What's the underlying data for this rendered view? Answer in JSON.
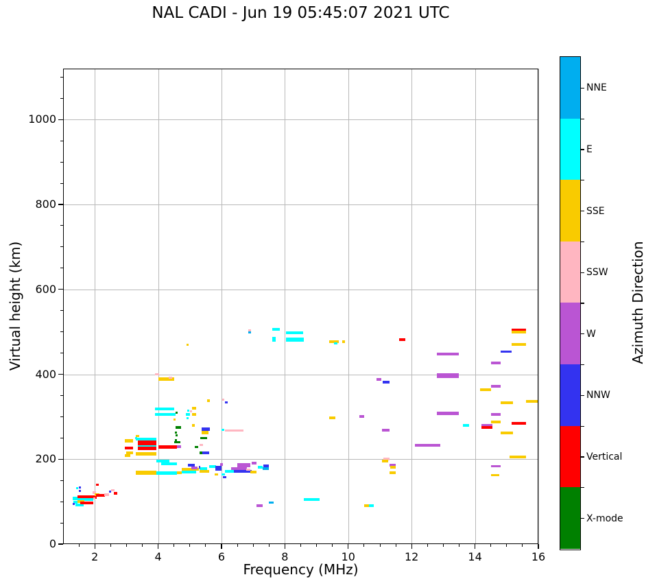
{
  "title": "NAL CADI - Jun 19 05:45:07 2021 UTC",
  "x_axis": {
    "label": "Frequency (MHz)",
    "min": 1,
    "max": 16,
    "major_ticks": [
      2,
      4,
      6,
      8,
      10,
      12,
      14,
      16
    ],
    "minor_step": 0.5
  },
  "y_axis": {
    "label": "Virtual height (km)",
    "min": 0,
    "max": 1120,
    "major_ticks": [
      0,
      200,
      400,
      600,
      800,
      1000
    ],
    "minor_step": 50
  },
  "colorbar": {
    "label": "Azimuth Direction",
    "segments_top_to_bottom": [
      {
        "label": "NNE",
        "color": "#00AEEF"
      },
      {
        "label": "E",
        "color": "#00FFFF"
      },
      {
        "label": "SSE",
        "color": "#F9CB00"
      },
      {
        "label": "SSW",
        "color": "#FFB6C1"
      },
      {
        "label": "W",
        "color": "#BA55D3"
      },
      {
        "label": "NNW",
        "color": "#3333F0"
      },
      {
        "label": "Vertical",
        "color": "#FF0000"
      },
      {
        "label": "X-mode",
        "color": "#008000"
      }
    ]
  },
  "palette": {
    "NNE": "#00AEEF",
    "E": "#00FFFF",
    "SSE": "#F9CB00",
    "SSW": "#FFB6C1",
    "W": "#BA55D3",
    "NNW": "#3333F0",
    "Vertical": "#FF0000",
    "X-mode": "#008000"
  },
  "chart_data": {
    "type": "scatter",
    "title": "NAL CADI - Jun 19 05:45:07 2021 UTC",
    "xlabel": "Frequency (MHz)",
    "ylabel": "Virtual height (km)",
    "xlim": [
      1,
      16
    ],
    "ylim": [
      0,
      1120
    ],
    "grid": true,
    "legend_position": "right-colorbar",
    "series_key": "azimuth_direction",
    "directions": [
      "NNE",
      "E",
      "SSE",
      "SSW",
      "W",
      "NNW",
      "Vertical",
      "X-mode"
    ],
    "point_format": [
      "freq_start_MHz",
      "freq_end_MHz",
      "virtual_height_km",
      "direction",
      "thickness_px"
    ],
    "points": [
      [
        1.3,
        1.45,
        107,
        "E",
        5
      ],
      [
        1.33,
        1.45,
        99,
        "E",
        4
      ],
      [
        1.3,
        1.36,
        94,
        "NNW",
        3
      ],
      [
        1.38,
        1.65,
        92,
        "E",
        4
      ],
      [
        1.45,
        2.06,
        111,
        "Vertical",
        5
      ],
      [
        1.45,
        1.95,
        105,
        "E",
        4
      ],
      [
        1.45,
        1.68,
        101,
        "SSE",
        4
      ],
      [
        1.55,
        1.95,
        97,
        "Vertical",
        4
      ],
      [
        1.42,
        1.48,
        131,
        "E",
        3
      ],
      [
        1.5,
        1.56,
        125,
        "NNW",
        3
      ],
      [
        1.5,
        1.56,
        134,
        "NNW",
        3
      ],
      [
        1.94,
        2.04,
        121,
        "SSW",
        4
      ],
      [
        2.0,
        2.15,
        117,
        "SSE",
        4
      ],
      [
        2.04,
        2.32,
        114,
        "Vertical",
        4
      ],
      [
        2.3,
        2.45,
        117,
        "SSW",
        4
      ],
      [
        2.45,
        2.52,
        123,
        "NNW",
        3
      ],
      [
        2.52,
        2.62,
        127,
        "SSW",
        3
      ],
      [
        2.6,
        2.72,
        119,
        "Vertical",
        4
      ],
      [
        2.04,
        2.12,
        139,
        "Vertical",
        3
      ],
      [
        1.95,
        2.02,
        108,
        "SSW",
        3
      ],
      [
        2.95,
        3.2,
        243,
        "SSE",
        5
      ],
      [
        2.95,
        3.2,
        227,
        "Vertical",
        4
      ],
      [
        3.0,
        3.2,
        215,
        "SSE",
        4
      ],
      [
        2.95,
        3.12,
        208,
        "SSE",
        4
      ],
      [
        3.27,
        3.34,
        250,
        "E",
        3
      ],
      [
        3.3,
        3.4,
        255,
        "SSE",
        3
      ],
      [
        3.3,
        3.95,
        247,
        "E",
        4
      ],
      [
        3.35,
        3.95,
        239,
        "Vertical",
        7
      ],
      [
        3.35,
        3.95,
        231,
        "E",
        3
      ],
      [
        3.35,
        3.95,
        225,
        "Vertical",
        5
      ],
      [
        3.3,
        3.95,
        213,
        "SSE",
        5
      ],
      [
        3.95,
        4.35,
        196,
        "E",
        4
      ],
      [
        4.1,
        4.6,
        189,
        "E",
        4
      ],
      [
        4.0,
        4.6,
        229,
        "Vertical",
        5
      ],
      [
        4.6,
        4.72,
        229,
        "W",
        4
      ],
      [
        3.3,
        3.95,
        168,
        "SSE",
        6
      ],
      [
        3.95,
        4.6,
        168,
        "E",
        5
      ],
      [
        4.6,
        4.75,
        168,
        "SSE",
        4
      ],
      [
        4.75,
        5.2,
        169,
        "E",
        4
      ],
      [
        4.5,
        4.56,
        240,
        "NNW",
        3
      ],
      [
        4.55,
        4.72,
        274,
        "X-mode",
        4
      ],
      [
        4.52,
        4.6,
        262,
        "X-mode",
        3
      ],
      [
        4.55,
        4.62,
        256,
        "X-mode",
        3
      ],
      [
        4.52,
        4.6,
        245,
        "X-mode",
        3
      ],
      [
        4.5,
        4.7,
        240,
        "X-mode",
        3
      ],
      [
        5.33,
        5.54,
        250,
        "X-mode",
        3
      ],
      [
        5.15,
        5.26,
        228,
        "X-mode",
        3
      ],
      [
        3.9,
        4.5,
        318,
        "E",
        4
      ],
      [
        3.9,
        4.55,
        306,
        "E",
        4
      ],
      [
        4.88,
        5.0,
        305,
        "E",
        4
      ],
      [
        4.55,
        4.61,
        310,
        "X-mode",
        3
      ],
      [
        4.48,
        4.54,
        293,
        "SSE",
        3
      ],
      [
        4.9,
        4.96,
        297,
        "E",
        3
      ],
      [
        5.07,
        5.2,
        320,
        "SSE",
        4
      ],
      [
        5.07,
        5.2,
        306,
        "SSE",
        4
      ],
      [
        5.07,
        5.15,
        280,
        "SSE",
        4
      ],
      [
        5.0,
        5.07,
        312,
        "SSW",
        3
      ],
      [
        4.92,
        4.98,
        315,
        "E",
        3
      ],
      [
        3.9,
        4.03,
        400,
        "SSW",
        3
      ],
      [
        4.0,
        4.5,
        388,
        "SSE",
        5
      ],
      [
        4.33,
        4.45,
        392,
        "SSW",
        3
      ],
      [
        4.9,
        4.96,
        470,
        "SSE",
        3
      ],
      [
        5.37,
        5.63,
        270,
        "NNW",
        5
      ],
      [
        5.37,
        5.58,
        262,
        "SSE",
        5
      ],
      [
        5.54,
        5.63,
        338,
        "SSE",
        4
      ],
      [
        6.02,
        6.08,
        341,
        "SSW",
        3
      ],
      [
        6.1,
        6.2,
        334,
        "NNW",
        3
      ],
      [
        5.3,
        5.42,
        233,
        "SSW",
        3
      ],
      [
        5.3,
        5.45,
        215,
        "X-mode",
        4
      ],
      [
        5.4,
        5.62,
        215,
        "NNW",
        4
      ],
      [
        5.3,
        5.6,
        171,
        "SSE",
        4
      ],
      [
        5.3,
        5.55,
        178,
        "E",
        4
      ],
      [
        5.28,
        5.33,
        181,
        "NNW",
        4
      ],
      [
        5.6,
        5.82,
        182,
        "E",
        4
      ],
      [
        5.8,
        6.0,
        179,
        "NNW",
        7
      ],
      [
        5.95,
        6.05,
        188,
        "W",
        4
      ],
      [
        5.78,
        5.9,
        164,
        "SSE",
        3
      ],
      [
        6.0,
        6.1,
        164,
        "E",
        3
      ],
      [
        6.05,
        6.15,
        157,
        "NNW",
        3
      ],
      [
        6.1,
        6.45,
        172,
        "E",
        4
      ],
      [
        6.3,
        6.8,
        178,
        "W",
        4
      ],
      [
        6.4,
        6.95,
        171,
        "NNW",
        4
      ],
      [
        6.78,
        6.9,
        176,
        "SSW",
        3
      ],
      [
        6.9,
        7.1,
        170,
        "SSE",
        4
      ],
      [
        6.5,
        6.9,
        186,
        "W",
        6
      ],
      [
        6.95,
        7.1,
        190,
        "W",
        4
      ],
      [
        7.14,
        7.3,
        181,
        "E",
        4
      ],
      [
        7.33,
        7.5,
        184,
        "NNW",
        4
      ],
      [
        7.3,
        7.5,
        178,
        "NNE",
        4
      ],
      [
        4.75,
        5.28,
        176,
        "SSE",
        4
      ],
      [
        4.95,
        5.15,
        186,
        "NNW",
        4
      ],
      [
        5.05,
        5.25,
        180,
        "W",
        4
      ],
      [
        6.0,
        6.08,
        269,
        "E",
        3
      ],
      [
        6.1,
        6.7,
        268,
        "SSW",
        3
      ],
      [
        6.84,
        6.93,
        503,
        "SSW",
        3
      ],
      [
        6.84,
        6.93,
        498,
        "NNE",
        3
      ],
      [
        7.6,
        7.85,
        506,
        "E",
        4
      ],
      [
        7.6,
        7.7,
        482,
        "E",
        7
      ],
      [
        8.03,
        8.57,
        497,
        "E",
        4
      ],
      [
        8.03,
        8.6,
        481,
        "E",
        6
      ],
      [
        9.4,
        9.7,
        476,
        "SSE",
        4
      ],
      [
        9.56,
        9.66,
        472,
        "E",
        3
      ],
      [
        9.8,
        9.9,
        476,
        "SSE",
        4
      ],
      [
        11.6,
        11.8,
        481,
        "Vertical",
        4
      ],
      [
        10.9,
        11.05,
        388,
        "W",
        4
      ],
      [
        11.08,
        11.3,
        381,
        "NNW",
        4
      ],
      [
        8.6,
        9.1,
        105,
        "E",
        4
      ],
      [
        7.1,
        7.3,
        90,
        "W",
        4
      ],
      [
        7.5,
        7.65,
        98,
        "NNE",
        3
      ],
      [
        10.5,
        10.65,
        91,
        "SSE",
        4
      ],
      [
        10.65,
        10.8,
        91,
        "E",
        4
      ],
      [
        9.4,
        9.6,
        298,
        "SSE",
        4
      ],
      [
        10.35,
        10.5,
        300,
        "W",
        4
      ],
      [
        11.07,
        11.3,
        269,
        "W",
        4
      ],
      [
        11.1,
        11.3,
        201,
        "SSW",
        4
      ],
      [
        11.07,
        11.27,
        196,
        "SSE",
        4
      ],
      [
        11.3,
        11.5,
        186,
        "W",
        4
      ],
      [
        11.32,
        11.5,
        181,
        "SSE",
        4
      ],
      [
        11.3,
        11.5,
        168,
        "SSE",
        4
      ],
      [
        12.1,
        12.9,
        233,
        "W",
        4
      ],
      [
        12.8,
        13.5,
        400,
        "W",
        4
      ],
      [
        12.8,
        13.5,
        394,
        "W",
        4
      ],
      [
        12.8,
        13.5,
        447,
        "W",
        4
      ],
      [
        12.8,
        13.5,
        308,
        "W",
        5
      ],
      [
        14.5,
        14.8,
        371,
        "W",
        4
      ],
      [
        14.15,
        14.5,
        363,
        "SSE",
        4
      ],
      [
        14.8,
        15.2,
        333,
        "SSE",
        4
      ],
      [
        15.6,
        16.0,
        336,
        "SSE",
        4
      ],
      [
        14.5,
        14.8,
        305,
        "W",
        4
      ],
      [
        13.62,
        13.82,
        280,
        "E",
        4
      ],
      [
        14.5,
        14.8,
        287,
        "SSE",
        4
      ],
      [
        15.15,
        15.6,
        284,
        "Vertical",
        4
      ],
      [
        14.2,
        14.55,
        279,
        "W",
        4
      ],
      [
        14.2,
        14.55,
        274,
        "Vertical",
        4
      ],
      [
        14.8,
        15.2,
        262,
        "SSE",
        4
      ],
      [
        15.1,
        15.6,
        206,
        "SSE",
        4
      ],
      [
        14.5,
        14.8,
        183,
        "W",
        3
      ],
      [
        14.5,
        14.77,
        163,
        "SSE",
        3
      ],
      [
        15.15,
        15.6,
        505,
        "Vertical",
        4
      ],
      [
        15.15,
        15.6,
        500,
        "SSE",
        4
      ],
      [
        15.15,
        15.6,
        470,
        "SSE",
        4
      ],
      [
        14.8,
        15.15,
        453,
        "NNW",
        3
      ],
      [
        14.5,
        14.8,
        427,
        "W",
        4
      ]
    ]
  }
}
